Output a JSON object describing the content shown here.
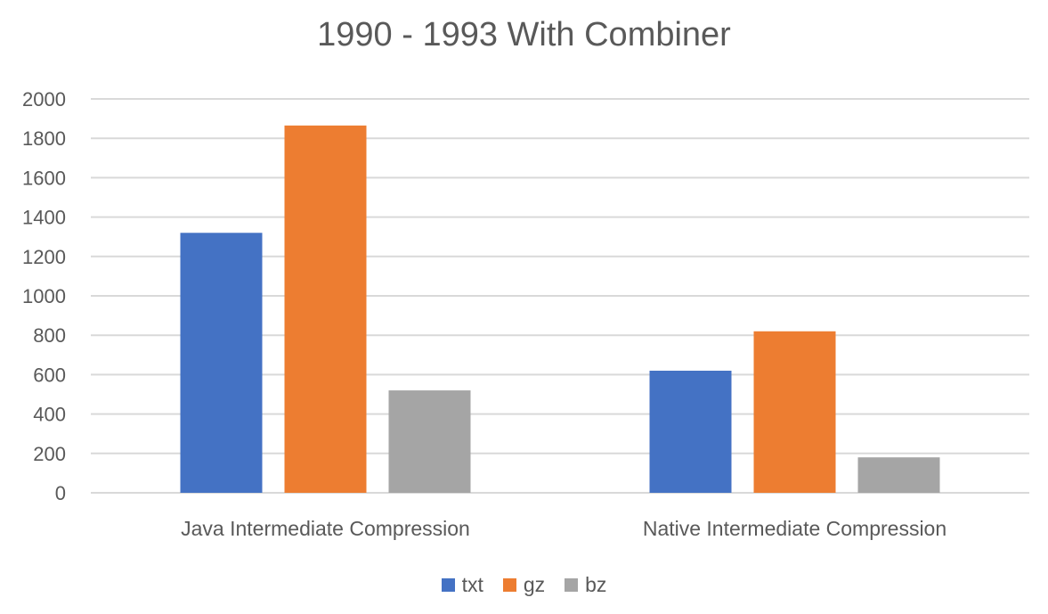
{
  "chart_data": {
    "type": "bar",
    "title": "1990 - 1993 With Combiner",
    "categories": [
      "Java Intermediate Compression",
      "Native Intermediate Compression"
    ],
    "series": [
      {
        "name": "txt",
        "color": "#4472C4",
        "values": [
          1320,
          620
        ]
      },
      {
        "name": "gz",
        "color": "#ED7D31",
        "values": [
          1865,
          820
        ]
      },
      {
        "name": "bz",
        "color": "#A5A5A5",
        "values": [
          520,
          180
        ]
      }
    ],
    "ylim": [
      0,
      2000
    ],
    "yticks": [
      0,
      200,
      400,
      600,
      800,
      1000,
      1200,
      1400,
      1600,
      1800,
      2000
    ],
    "grid": true,
    "legend": "bottom"
  }
}
